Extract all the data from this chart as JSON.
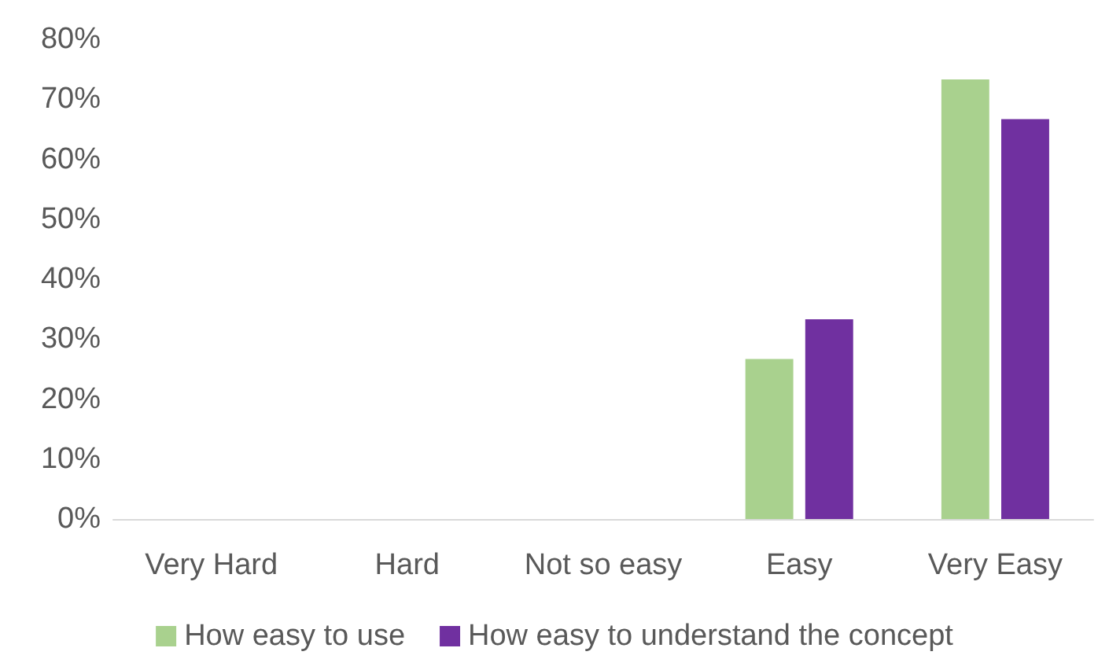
{
  "chart_data": {
    "type": "bar",
    "categories": [
      "Very Hard",
      "Hard",
      "Not so easy",
      "Easy",
      "Very Easy"
    ],
    "series": [
      {
        "name": "How easy to use",
        "color": "#a9d18e",
        "values": [
          0,
          0,
          0,
          26.7,
          73.3
        ]
      },
      {
        "name": "How easy to understand the concept",
        "color": "#7030a0",
        "values": [
          0,
          0,
          0,
          33.3,
          66.7
        ]
      }
    ],
    "ylim": [
      0,
      80
    ],
    "yticks": [
      {
        "value": 0,
        "label": "0%"
      },
      {
        "value": 10,
        "label": "10%"
      },
      {
        "value": 20,
        "label": "20%"
      },
      {
        "value": 30,
        "label": "30%"
      },
      {
        "value": 40,
        "label": "40%"
      },
      {
        "value": 50,
        "label": "50%"
      },
      {
        "value": 60,
        "label": "60%"
      },
      {
        "value": 70,
        "label": "70%"
      },
      {
        "value": 80,
        "label": "80%"
      }
    ],
    "grid": false,
    "legend": "bottom"
  }
}
